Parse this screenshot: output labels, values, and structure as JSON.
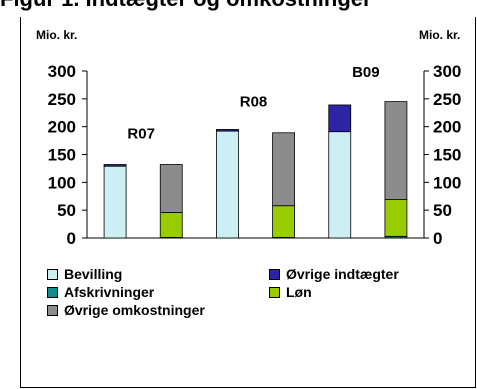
{
  "title": "Figur 1. Indtægter og omkostninger",
  "chart_data": {
    "type": "bar",
    "stacked": true,
    "y_unit_left": "Mio. kr.",
    "y_unit_right": "Mio. kr.",
    "ylim": [
      0,
      300
    ],
    "yticks": [
      "0",
      "50",
      "100",
      "150",
      "200",
      "250",
      "300"
    ],
    "grid": false,
    "legend_position": "bottom",
    "groups": [
      {
        "label": "R07",
        "bars": [
          {
            "kind": "income",
            "segments": {
              "Bevilling": 129,
              "Øvrige indtægter": 3
            }
          },
          {
            "kind": "costs",
            "segments": {
              "Afskrivninger": 1,
              "Løn": 45,
              "Øvrige omkostninger": 86
            }
          }
        ]
      },
      {
        "label": "R08",
        "bars": [
          {
            "kind": "income",
            "segments": {
              "Bevilling": 192,
              "Øvrige indtægter": 3
            }
          },
          {
            "kind": "costs",
            "segments": {
              "Afskrivninger": 1,
              "Løn": 57,
              "Øvrige omkostninger": 131
            }
          }
        ]
      },
      {
        "label": "B09",
        "bars": [
          {
            "kind": "income",
            "segments": {
              "Bevilling": 191,
              "Øvrige indtægter": 48
            }
          },
          {
            "kind": "costs",
            "segments": {
              "Afskrivninger": 3,
              "Løn": 66,
              "Øvrige omkostninger": 176
            }
          }
        ]
      }
    ],
    "series": [
      {
        "name": "Bevilling",
        "color": "#cceff3"
      },
      {
        "name": "Øvrige indtægter",
        "color": "#2c24a6"
      },
      {
        "name": "Afskrivninger",
        "color": "#0f8c8c"
      },
      {
        "name": "Løn",
        "color": "#99cc00"
      },
      {
        "name": "Øvrige omkostninger",
        "color": "#8c8c8c"
      }
    ]
  }
}
